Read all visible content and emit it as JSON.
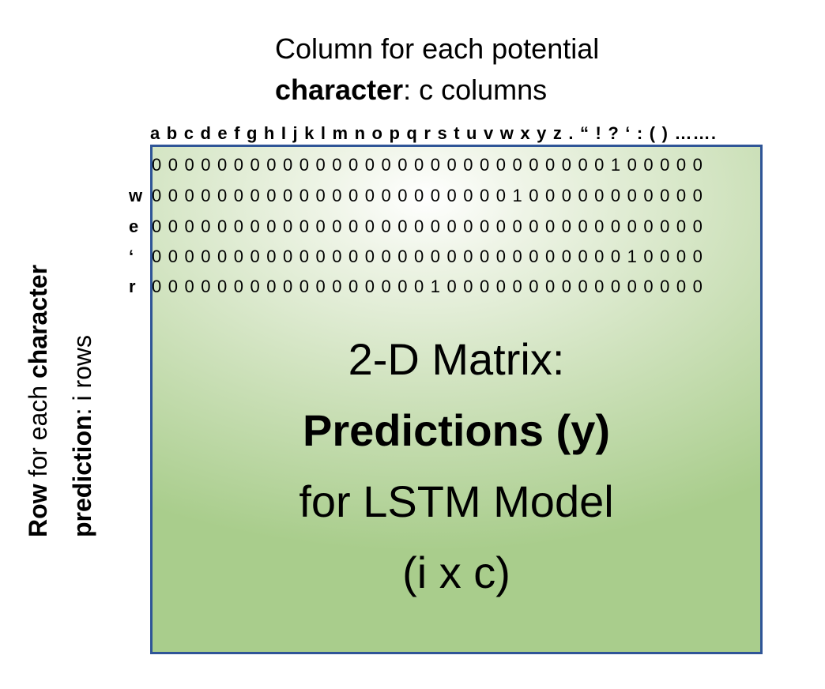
{
  "top_caption": {
    "line1": "Column for each potential",
    "line2_bold": "character",
    "line2_rest": ": c columns"
  },
  "side_caption": {
    "line1_bold": "Row",
    "line1_rest": " for each ",
    "line1_bold2": "character",
    "line2_bold": "prediction",
    "line2_rest": ": i rows"
  },
  "matrix": {
    "column_header": "a b c d e f g h I j k l m n o p q r s t u v w x y z . “ ! ? ‘ : ( ) …….",
    "rows": [
      {
        "label": "",
        "values": "0 0 0 0 0 0 0 0 0 0 0 0 0 0 0 0 0 0 0 0 0 0 0 0 0 0 0 0 1 0 0 0 0 0"
      },
      {
        "label": "w",
        "values": "0 0 0 0 0 0 0 0 0 0 0 0 0 0 0 0 0 0 0 0 0 0 1 0 0 0 0 0 0 0 0 0 0 0"
      },
      {
        "label": "e",
        "values": "0 0 0 0 0 0 0 0 0 0 0 0 0 0 0 0 0 0 0 0 0 0 0 0 0 0 0 0 0 0 0 0 0 0"
      },
      {
        "label": "‘",
        "values": "0 0 0 0 0 0 0 0 0 0 0 0 0 0 0 0 0 0 0 0 0 0 0 0 0 0 0 0 0 1 0 0 0 0"
      },
      {
        "label": "r",
        "values": "0 0 0 0 0 0 0 0 0 0 0 0 0 0 0 0 0 1 0 0 0 0 0 0 0 0 0 0 0 0 0 0 0 0"
      }
    ]
  },
  "center": {
    "line1": "2-D Matrix:",
    "line2": "Predictions (y)",
    "line3": "for LSTM Model",
    "line4": "(i x c)"
  },
  "colors": {
    "border": "#2f5597",
    "fill_light": "#ffffff",
    "fill_dark": "#a9cd8c"
  }
}
